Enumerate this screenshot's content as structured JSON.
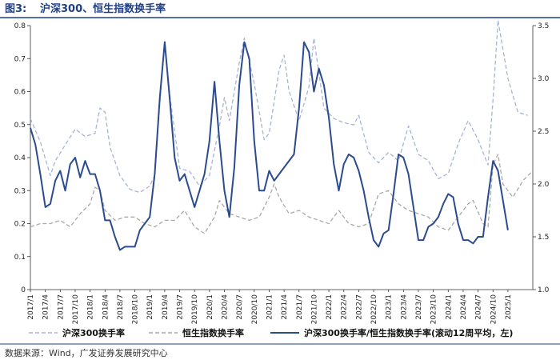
{
  "figure": {
    "label": "图3:",
    "title": "沪深300、恒生指数换手率",
    "source": "数据来源：Wind，广发证券发展研究中心"
  },
  "colors": {
    "accent": "#1f3f86",
    "ratio_line": "#2b4b8f",
    "hs300_line": "#a8b4d6",
    "hsi_line": "#a9a9a9"
  },
  "chart_data": {
    "type": "line",
    "title": "沪深300、恒生指数换手率",
    "x_ticks": [
      "2017/1",
      "2017/4",
      "2017/7",
      "2017/10",
      "2018/1",
      "2018/4",
      "2018/7",
      "2018/10",
      "2019/1",
      "2019/4",
      "2019/7",
      "2019/10",
      "2020/1",
      "2020/4",
      "2020/7",
      "2020/10",
      "2021/1",
      "2021/4",
      "2021/7",
      "2021/10",
      "2022/1",
      "2022/4",
      "2022/7",
      "2022/10",
      "2023/1",
      "2023/4",
      "2023/7",
      "2023/10",
      "2024/1",
      "2024/4",
      "2024/7",
      "2024/10",
      "2025/1"
    ],
    "x_range": [
      "2017/1",
      "2025/6"
    ],
    "y_left": {
      "ticks": [
        "0",
        "0.1",
        "0.2",
        "0.3",
        "0.4",
        "0.5",
        "0.6",
        "0.7",
        "0.8"
      ],
      "range": [
        0,
        0.8
      ]
    },
    "y_right": {
      "ticks": [
        "1.0",
        "1.5",
        "2.0",
        "2.5",
        "3.0",
        "3.5"
      ],
      "range": [
        1.0,
        3.5
      ]
    },
    "legend_position": "bottom",
    "grid": false,
    "series": [
      {
        "name": "沪深300换手率",
        "axis": "right",
        "style": "dashed",
        "points": [
          [
            "2017/1",
            2.62
          ],
          [
            "2017/3",
            2.4
          ],
          [
            "2017/5",
            2.08
          ],
          [
            "2017/6",
            2.22
          ],
          [
            "2017/8",
            2.37
          ],
          [
            "2017/10",
            2.52
          ],
          [
            "2017/12",
            2.45
          ],
          [
            "2018/2",
            2.48
          ],
          [
            "2018/3",
            2.72
          ],
          [
            "2018/4",
            2.68
          ],
          [
            "2018/5",
            2.35
          ],
          [
            "2018/7",
            2.08
          ],
          [
            "2018/9",
            1.95
          ],
          [
            "2018/11",
            1.92
          ],
          [
            "2019/1",
            1.98
          ],
          [
            "2019/2",
            2.08
          ],
          [
            "2019/3",
            2.75
          ],
          [
            "2019/4",
            3.35
          ],
          [
            "2019/5",
            2.85
          ],
          [
            "2019/7",
            2.15
          ],
          [
            "2019/9",
            2.12
          ],
          [
            "2019/11",
            1.98
          ],
          [
            "2020/1",
            2.08
          ],
          [
            "2020/3",
            2.55
          ],
          [
            "2020/4",
            2.82
          ],
          [
            "2020/5",
            2.6
          ],
          [
            "2020/7",
            3.15
          ],
          [
            "2020/8",
            3.38
          ],
          [
            "2020/10",
            2.95
          ],
          [
            "2020/12",
            2.42
          ],
          [
            "2021/1",
            2.48
          ],
          [
            "2021/3",
            3.08
          ],
          [
            "2021/4",
            3.22
          ],
          [
            "2021/5",
            2.88
          ],
          [
            "2021/7",
            2.6
          ],
          [
            "2021/9",
            2.92
          ],
          [
            "2021/10",
            3.38
          ],
          [
            "2021/12",
            2.72
          ],
          [
            "2022/2",
            2.62
          ],
          [
            "2022/4",
            2.58
          ],
          [
            "2022/6",
            2.56
          ],
          [
            "2022/7",
            2.65
          ],
          [
            "2022/9",
            2.3
          ],
          [
            "2022/11",
            2.2
          ],
          [
            "2023/1",
            2.3
          ],
          [
            "2023/3",
            2.22
          ],
          [
            "2023/5",
            2.55
          ],
          [
            "2023/7",
            2.28
          ],
          [
            "2023/9",
            2.22
          ],
          [
            "2023/11",
            2.05
          ],
          [
            "2024/1",
            2.1
          ],
          [
            "2024/3",
            2.38
          ],
          [
            "2024/5",
            2.6
          ],
          [
            "2024/7",
            2.42
          ],
          [
            "2024/9",
            2.18
          ],
          [
            "2024/10",
            2.8
          ],
          [
            "2024/11",
            3.55
          ],
          [
            "2025/1",
            3.0
          ],
          [
            "2025/3",
            2.68
          ],
          [
            "2025/5",
            2.65
          ]
        ]
      },
      {
        "name": "恒生指数换手率",
        "axis": "left",
        "style": "dashed",
        "points": [
          [
            "2017/1",
            0.19
          ],
          [
            "2017/3",
            0.2
          ],
          [
            "2017/5",
            0.2
          ],
          [
            "2017/7",
            0.21
          ],
          [
            "2017/9",
            0.19
          ],
          [
            "2017/11",
            0.23
          ],
          [
            "2018/1",
            0.26
          ],
          [
            "2018/2",
            0.31
          ],
          [
            "2018/3",
            0.3
          ],
          [
            "2018/4",
            0.24
          ],
          [
            "2018/6",
            0.21
          ],
          [
            "2018/8",
            0.22
          ],
          [
            "2018/10",
            0.22
          ],
          [
            "2018/12",
            0.2
          ],
          [
            "2019/2",
            0.19
          ],
          [
            "2019/4",
            0.21
          ],
          [
            "2019/6",
            0.21
          ],
          [
            "2019/8",
            0.24
          ],
          [
            "2019/10",
            0.19
          ],
          [
            "2019/12",
            0.17
          ],
          [
            "2020/2",
            0.22
          ],
          [
            "2020/3",
            0.27
          ],
          [
            "2020/5",
            0.23
          ],
          [
            "2020/7",
            0.22
          ],
          [
            "2020/9",
            0.21
          ],
          [
            "2020/11",
            0.22
          ],
          [
            "2021/1",
            0.28
          ],
          [
            "2021/2",
            0.32
          ],
          [
            "2021/3",
            0.28
          ],
          [
            "2021/5",
            0.23
          ],
          [
            "2021/7",
            0.24
          ],
          [
            "2021/9",
            0.22
          ],
          [
            "2021/11",
            0.21
          ],
          [
            "2022/1",
            0.2
          ],
          [
            "2022/3",
            0.24
          ],
          [
            "2022/5",
            0.2
          ],
          [
            "2022/7",
            0.19
          ],
          [
            "2022/9",
            0.2
          ],
          [
            "2022/11",
            0.29
          ],
          [
            "2023/1",
            0.3
          ],
          [
            "2023/3",
            0.26
          ],
          [
            "2023/5",
            0.24
          ],
          [
            "2023/7",
            0.23
          ],
          [
            "2023/9",
            0.22
          ],
          [
            "2023/11",
            0.19
          ],
          [
            "2024/1",
            0.18
          ],
          [
            "2024/3",
            0.22
          ],
          [
            "2024/5",
            0.26
          ],
          [
            "2024/6",
            0.27
          ],
          [
            "2024/8",
            0.2
          ],
          [
            "2024/9",
            0.19
          ],
          [
            "2024/10",
            0.38
          ],
          [
            "2024/11",
            0.41
          ],
          [
            "2024/12",
            0.32
          ],
          [
            "2025/2",
            0.28
          ],
          [
            "2025/4",
            0.33
          ],
          [
            "2025/6",
            0.36
          ]
        ]
      },
      {
        "name": "沪深300换手率/恒生指数换手率(滚动12周平均，左)",
        "axis": "left",
        "style": "solid",
        "points": [
          [
            "2017/1",
            0.49
          ],
          [
            "2017/2",
            0.44
          ],
          [
            "2017/3",
            0.35
          ],
          [
            "2017/4",
            0.25
          ],
          [
            "2017/5",
            0.26
          ],
          [
            "2017/6",
            0.33
          ],
          [
            "2017/7",
            0.36
          ],
          [
            "2017/8",
            0.3
          ],
          [
            "2017/9",
            0.38
          ],
          [
            "2017/10",
            0.4
          ],
          [
            "2017/11",
            0.34
          ],
          [
            "2017/12",
            0.39
          ],
          [
            "2018/1",
            0.35
          ],
          [
            "2018/2",
            0.35
          ],
          [
            "2018/3",
            0.3
          ],
          [
            "2018/4",
            0.21
          ],
          [
            "2018/5",
            0.21
          ],
          [
            "2018/6",
            0.16
          ],
          [
            "2018/7",
            0.12
          ],
          [
            "2018/8",
            0.13
          ],
          [
            "2018/9",
            0.13
          ],
          [
            "2018/10",
            0.13
          ],
          [
            "2018/11",
            0.18
          ],
          [
            "2018/12",
            0.2
          ],
          [
            "2019/1",
            0.22
          ],
          [
            "2019/2",
            0.35
          ],
          [
            "2019/3",
            0.58
          ],
          [
            "2019/4",
            0.75
          ],
          [
            "2019/5",
            0.58
          ],
          [
            "2019/6",
            0.4
          ],
          [
            "2019/7",
            0.33
          ],
          [
            "2019/8",
            0.35
          ],
          [
            "2019/9",
            0.3
          ],
          [
            "2019/10",
            0.25
          ],
          [
            "2019/11",
            0.3
          ],
          [
            "2019/12",
            0.35
          ],
          [
            "2020/1",
            0.45
          ],
          [
            "2020/2",
            0.63
          ],
          [
            "2020/3",
            0.45
          ],
          [
            "2020/4",
            0.3
          ],
          [
            "2020/5",
            0.22
          ],
          [
            "2020/6",
            0.37
          ],
          [
            "2020/7",
            0.62
          ],
          [
            "2020/8",
            0.75
          ],
          [
            "2020/9",
            0.7
          ],
          [
            "2020/10",
            0.45
          ],
          [
            "2020/11",
            0.3
          ],
          [
            "2020/12",
            0.3
          ],
          [
            "2021/1",
            0.36
          ],
          [
            "2021/2",
            0.33
          ],
          [
            "2021/3",
            0.35
          ],
          [
            "2021/4",
            0.37
          ],
          [
            "2021/5",
            0.39
          ],
          [
            "2021/6",
            0.41
          ],
          [
            "2021/7",
            0.55
          ],
          [
            "2021/8",
            0.75
          ],
          [
            "2021/9",
            0.72
          ],
          [
            "2021/10",
            0.6
          ],
          [
            "2021/11",
            0.67
          ],
          [
            "2021/12",
            0.62
          ],
          [
            "2022/1",
            0.52
          ],
          [
            "2022/2",
            0.38
          ],
          [
            "2022/3",
            0.3
          ],
          [
            "2022/4",
            0.38
          ],
          [
            "2022/5",
            0.41
          ],
          [
            "2022/6",
            0.4
          ],
          [
            "2022/7",
            0.36
          ],
          [
            "2022/8",
            0.3
          ],
          [
            "2022/9",
            0.22
          ],
          [
            "2022/10",
            0.15
          ],
          [
            "2022/11",
            0.13
          ],
          [
            "2022/12",
            0.17
          ],
          [
            "2023/1",
            0.18
          ],
          [
            "2023/2",
            0.29
          ],
          [
            "2023/3",
            0.41
          ],
          [
            "2023/4",
            0.4
          ],
          [
            "2023/5",
            0.35
          ],
          [
            "2023/6",
            0.25
          ],
          [
            "2023/7",
            0.15
          ],
          [
            "2023/8",
            0.15
          ],
          [
            "2023/9",
            0.19
          ],
          [
            "2023/10",
            0.2
          ],
          [
            "2023/11",
            0.22
          ],
          [
            "2023/12",
            0.26
          ],
          [
            "2024/1",
            0.29
          ],
          [
            "2024/2",
            0.28
          ],
          [
            "2024/3",
            0.2
          ],
          [
            "2024/4",
            0.15
          ],
          [
            "2024/5",
            0.15
          ],
          [
            "2024/6",
            0.14
          ],
          [
            "2024/7",
            0.16
          ],
          [
            "2024/8",
            0.16
          ],
          [
            "2024/9",
            0.28
          ],
          [
            "2024/10",
            0.39
          ],
          [
            "2024/11",
            0.36
          ],
          [
            "2024/12",
            0.27
          ],
          [
            "2025/1",
            0.18
          ]
        ]
      }
    ]
  }
}
